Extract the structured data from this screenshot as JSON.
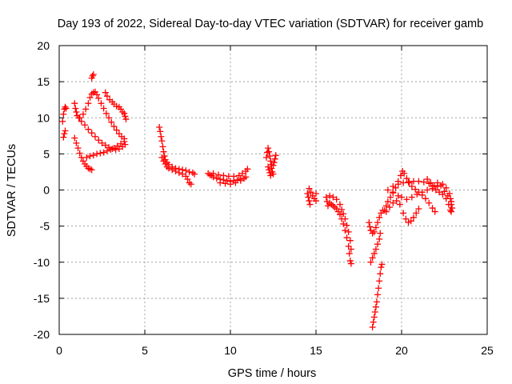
{
  "chart_data": {
    "type": "scatter",
    "title": "Day 193 of 2022, Sidereal Day-to-day VTEC variation (SDTVAR) for receiver gamb",
    "xlabel": "GPS time / hours",
    "ylabel": "SDTVAR / TECUs",
    "xlim": [
      0,
      25
    ],
    "ylim": [
      -20,
      20
    ],
    "xticks": [
      "0",
      "5",
      "10",
      "15",
      "20",
      "25"
    ],
    "yticks": [
      "20",
      "15",
      "10",
      "5",
      "0",
      "-5",
      "-10",
      "-15",
      "-20"
    ],
    "xtick_values": [
      0,
      5,
      10,
      15,
      20,
      25
    ],
    "ytick_values": [
      20,
      15,
      10,
      5,
      0,
      -5,
      -10,
      -15,
      -20
    ],
    "grid": true,
    "marker": "plus",
    "color": "#ff0000",
    "series": [
      {
        "points": [
          [
            0.25,
            7.3
          ],
          [
            0.3,
            7.8
          ],
          [
            0.35,
            8.2
          ],
          [
            0.2,
            9.5
          ],
          [
            0.25,
            10.5
          ],
          [
            0.3,
            11.2
          ],
          [
            0.35,
            11.5
          ],
          [
            0.4,
            11.3
          ],
          [
            0.9,
            12.0
          ],
          [
            0.95,
            11.3
          ],
          [
            1.0,
            10.8
          ],
          [
            1.05,
            10.3
          ],
          [
            1.15,
            10.0
          ],
          [
            1.3,
            9.5
          ],
          [
            1.5,
            9.0
          ],
          [
            1.7,
            8.4
          ],
          [
            1.9,
            7.9
          ],
          [
            2.1,
            7.4
          ],
          [
            2.3,
            6.9
          ],
          [
            2.5,
            6.5
          ],
          [
            2.7,
            6.2
          ],
          [
            2.9,
            5.9
          ],
          [
            3.1,
            5.7
          ],
          [
            3.3,
            5.6
          ],
          [
            3.5,
            5.7
          ],
          [
            3.7,
            6.0
          ],
          [
            3.85,
            6.3
          ],
          [
            0.9,
            7.2
          ],
          [
            1.0,
            6.5
          ],
          [
            1.1,
            5.8
          ],
          [
            1.2,
            5.1
          ],
          [
            1.3,
            4.5
          ],
          [
            1.4,
            4.0
          ],
          [
            1.5,
            3.6
          ],
          [
            1.6,
            3.3
          ],
          [
            1.7,
            3.0
          ],
          [
            1.8,
            2.9
          ],
          [
            1.9,
            2.8
          ],
          [
            1.6,
            4.5
          ],
          [
            1.8,
            4.7
          ],
          [
            2.0,
            4.8
          ],
          [
            2.2,
            5.0
          ],
          [
            2.4,
            5.1
          ],
          [
            2.6,
            5.2
          ],
          [
            2.8,
            5.4
          ],
          [
            3.0,
            5.6
          ],
          [
            3.2,
            5.8
          ],
          [
            3.4,
            6.1
          ],
          [
            3.6,
            6.4
          ],
          [
            3.8,
            6.7
          ],
          [
            1.2,
            10.0
          ],
          [
            1.4,
            10.5
          ],
          [
            1.55,
            11.2
          ],
          [
            1.7,
            12.0
          ],
          [
            1.8,
            12.8
          ],
          [
            1.9,
            13.3
          ],
          [
            2.0,
            13.5
          ],
          [
            2.1,
            13.6
          ],
          [
            2.2,
            13.2
          ],
          [
            2.3,
            12.7
          ],
          [
            2.45,
            12.0
          ],
          [
            2.6,
            11.3
          ],
          [
            2.75,
            10.6
          ],
          [
            2.9,
            10.0
          ],
          [
            3.05,
            9.4
          ],
          [
            3.2,
            8.8
          ],
          [
            3.35,
            8.3
          ],
          [
            3.5,
            7.8
          ],
          [
            3.65,
            7.4
          ],
          [
            3.8,
            7.1
          ],
          [
            1.9,
            15.5
          ],
          [
            1.95,
            15.8
          ],
          [
            2.0,
            16.0
          ],
          [
            2.7,
            13.5
          ],
          [
            2.8,
            13.0
          ],
          [
            2.95,
            12.5
          ],
          [
            3.1,
            12.2
          ],
          [
            3.2,
            11.9
          ],
          [
            3.35,
            11.6
          ],
          [
            3.5,
            11.5
          ],
          [
            3.6,
            11.2
          ],
          [
            3.7,
            10.8
          ],
          [
            3.8,
            10.6
          ],
          [
            3.85,
            10.2
          ],
          [
            3.9,
            9.8
          ]
        ]
      },
      {
        "points": [
          [
            5.85,
            8.7
          ],
          [
            5.9,
            8.1
          ],
          [
            5.95,
            7.4
          ],
          [
            6.0,
            6.8
          ],
          [
            6.05,
            6.0
          ],
          [
            6.1,
            5.3
          ],
          [
            6.15,
            4.7
          ],
          [
            6.2,
            4.2
          ],
          [
            6.3,
            3.8
          ],
          [
            6.4,
            3.5
          ],
          [
            6.6,
            3.2
          ],
          [
            6.8,
            3.0
          ],
          [
            7.0,
            2.9
          ],
          [
            7.2,
            2.8
          ],
          [
            7.4,
            2.7
          ],
          [
            7.6,
            2.5
          ],
          [
            7.8,
            2.4
          ],
          [
            7.9,
            2.2
          ],
          [
            6.0,
            4.5
          ],
          [
            6.1,
            4.0
          ],
          [
            6.2,
            3.6
          ],
          [
            6.3,
            3.2
          ],
          [
            6.4,
            3.0
          ],
          [
            6.6,
            2.8
          ],
          [
            6.8,
            2.6
          ],
          [
            7.0,
            2.4
          ],
          [
            7.2,
            2.2
          ],
          [
            7.4,
            1.9
          ],
          [
            7.5,
            1.5
          ],
          [
            7.6,
            1.0
          ],
          [
            7.7,
            0.8
          ]
        ]
      },
      {
        "points": [
          [
            8.7,
            2.3
          ],
          [
            8.8,
            2.1
          ],
          [
            8.9,
            2.0
          ],
          [
            9.0,
            1.8
          ],
          [
            9.2,
            1.6
          ],
          [
            9.4,
            1.5
          ],
          [
            9.6,
            1.4
          ],
          [
            9.8,
            1.3
          ],
          [
            10.0,
            1.2
          ],
          [
            10.2,
            1.3
          ],
          [
            10.4,
            1.4
          ],
          [
            10.6,
            1.5
          ],
          [
            10.8,
            1.6
          ],
          [
            10.9,
            1.8
          ],
          [
            9.0,
            2.3
          ],
          [
            9.3,
            2.1
          ],
          [
            9.6,
            2.0
          ],
          [
            9.9,
            1.9
          ],
          [
            10.2,
            1.9
          ],
          [
            10.5,
            2.0
          ],
          [
            10.7,
            2.3
          ],
          [
            10.9,
            2.6
          ],
          [
            11.0,
            2.9
          ],
          [
            9.4,
            1.0
          ],
          [
            9.7,
            0.9
          ],
          [
            10.0,
            0.8
          ],
          [
            10.3,
            1.0
          ],
          [
            10.6,
            1.3
          ]
        ]
      },
      {
        "points": [
          [
            12.1,
            4.5
          ],
          [
            12.15,
            5.2
          ],
          [
            12.2,
            5.8
          ],
          [
            12.25,
            5.3
          ],
          [
            12.3,
            4.7
          ],
          [
            12.35,
            4.0
          ],
          [
            12.4,
            3.5
          ],
          [
            12.2,
            3.2
          ],
          [
            12.25,
            2.8
          ],
          [
            12.3,
            2.4
          ],
          [
            12.35,
            2.0
          ],
          [
            12.4,
            3.0
          ],
          [
            12.5,
            3.4
          ],
          [
            12.55,
            3.8
          ],
          [
            12.6,
            4.3
          ],
          [
            12.65,
            4.8
          ],
          [
            12.45,
            2.5
          ],
          [
            12.5,
            2.2
          ]
        ]
      },
      {
        "points": [
          [
            14.5,
            -0.5
          ],
          [
            14.55,
            -1.0
          ],
          [
            14.6,
            -1.5
          ],
          [
            14.65,
            -2.0
          ],
          [
            14.6,
            0.2
          ],
          [
            14.7,
            -0.3
          ],
          [
            14.8,
            -0.8
          ],
          [
            14.9,
            -1.2
          ],
          [
            15.0,
            -0.5
          ],
          [
            15.0,
            -1.5
          ]
        ]
      },
      {
        "points": [
          [
            15.6,
            -1.0
          ],
          [
            15.65,
            -1.6
          ],
          [
            15.7,
            -2.2
          ],
          [
            15.8,
            -1.8
          ],
          [
            15.9,
            -2.0
          ],
          [
            16.0,
            -2.2
          ],
          [
            16.1,
            -2.4
          ],
          [
            16.2,
            -2.6
          ],
          [
            16.3,
            -3.0
          ],
          [
            16.4,
            -3.4
          ],
          [
            16.5,
            -4.0
          ],
          [
            16.6,
            -4.7
          ],
          [
            16.7,
            -5.6
          ],
          [
            16.8,
            -6.6
          ],
          [
            16.9,
            -7.8
          ],
          [
            16.95,
            -8.8
          ],
          [
            17.0,
            -9.8
          ],
          [
            17.05,
            -10.2
          ],
          [
            15.8,
            -0.8
          ],
          [
            16.0,
            -1.0
          ],
          [
            16.2,
            -1.3
          ],
          [
            16.4,
            -2.0
          ],
          [
            16.5,
            -2.7
          ],
          [
            16.6,
            -3.3
          ],
          [
            16.7,
            -4.0
          ],
          [
            16.8,
            -4.9
          ],
          [
            16.9,
            -5.8
          ],
          [
            17.0,
            -7.0
          ],
          [
            17.05,
            -8.2
          ]
        ]
      },
      {
        "points": [
          [
            18.1,
            -4.5
          ],
          [
            18.15,
            -5.1
          ],
          [
            18.2,
            -5.6
          ],
          [
            18.3,
            -6.0
          ],
          [
            18.4,
            -5.8
          ],
          [
            18.5,
            -5.2
          ],
          [
            18.6,
            -4.5
          ],
          [
            18.7,
            -3.8
          ],
          [
            18.8,
            -3.2
          ],
          [
            18.9,
            -2.8
          ],
          [
            18.2,
            -10.0
          ],
          [
            18.3,
            -9.4
          ],
          [
            18.4,
            -8.8
          ],
          [
            18.5,
            -8.2
          ],
          [
            18.6,
            -7.5
          ],
          [
            18.7,
            -6.8
          ],
          [
            18.75,
            -6.0
          ],
          [
            18.3,
            -19.0
          ],
          [
            18.35,
            -18.3
          ],
          [
            18.4,
            -17.6
          ],
          [
            18.45,
            -16.9
          ],
          [
            18.5,
            -16.2
          ],
          [
            18.55,
            -15.5
          ],
          [
            18.6,
            -14.5
          ],
          [
            18.65,
            -13.6
          ],
          [
            18.7,
            -12.6
          ],
          [
            18.75,
            -11.6
          ],
          [
            18.8,
            -10.7
          ],
          [
            18.85,
            -10.3
          ]
        ]
      },
      {
        "points": [
          [
            19.0,
            -2.8
          ],
          [
            19.1,
            -2.2
          ],
          [
            19.2,
            -1.6
          ],
          [
            19.35,
            -1.0
          ],
          [
            19.5,
            -0.4
          ],
          [
            19.65,
            0.3
          ],
          [
            19.8,
            1.2
          ],
          [
            19.95,
            2.0
          ],
          [
            20.05,
            2.6
          ],
          [
            20.15,
            2.3
          ],
          [
            20.3,
            1.6
          ],
          [
            20.45,
            1.0
          ],
          [
            20.6,
            0.5
          ],
          [
            20.8,
            0.1
          ],
          [
            21.0,
            -0.3
          ],
          [
            21.2,
            -0.7
          ],
          [
            21.4,
            -1.2
          ],
          [
            21.6,
            -1.8
          ],
          [
            21.8,
            -2.5
          ],
          [
            21.95,
            -3.0
          ],
          [
            19.1,
            -3.0
          ],
          [
            19.3,
            -2.4
          ],
          [
            19.5,
            -1.8
          ],
          [
            19.7,
            -1.5
          ],
          [
            19.9,
            -2.0
          ],
          [
            20.1,
            -3.2
          ],
          [
            20.25,
            -4.0
          ],
          [
            20.4,
            -4.5
          ],
          [
            20.55,
            -4.3
          ],
          [
            20.7,
            -3.8
          ],
          [
            20.85,
            -3.2
          ],
          [
            21.0,
            -2.6
          ],
          [
            19.2,
            0.0
          ],
          [
            19.5,
            -0.3
          ],
          [
            19.8,
            -0.8
          ],
          [
            20.0,
            -1.0
          ],
          [
            20.3,
            -1.3
          ],
          [
            20.6,
            -1.0
          ],
          [
            20.9,
            -0.6
          ],
          [
            21.2,
            -0.3
          ],
          [
            21.5,
            0.0
          ],
          [
            21.8,
            0.2
          ],
          [
            22.1,
            0.5
          ],
          [
            22.4,
            0.8
          ],
          [
            22.6,
            0.3
          ],
          [
            22.8,
            -0.5
          ],
          [
            22.85,
            -1.2
          ],
          [
            22.9,
            -2.0
          ],
          [
            19.5,
            0.5
          ],
          [
            19.8,
            0.8
          ],
          [
            20.1,
            1.0
          ],
          [
            20.4,
            1.1
          ],
          [
            20.7,
            1.2
          ],
          [
            21.0,
            1.2
          ],
          [
            21.3,
            1.1
          ],
          [
            21.6,
            0.9
          ],
          [
            21.8,
            0.5
          ],
          [
            22.0,
            0.0
          ],
          [
            22.2,
            -0.3
          ],
          [
            22.4,
            -0.6
          ],
          [
            22.6,
            -1.2
          ],
          [
            22.75,
            -2.0
          ],
          [
            22.85,
            -2.8
          ],
          [
            21.5,
            1.5
          ],
          [
            21.7,
            1.0
          ],
          [
            21.9,
            0.6
          ],
          [
            22.1,
            1.0
          ],
          [
            22.3,
            0.6
          ],
          [
            22.5,
            -0.2
          ],
          [
            22.7,
            -0.8
          ],
          [
            22.9,
            -1.6
          ],
          [
            22.95,
            -2.5
          ],
          [
            22.9,
            -3.0
          ]
        ]
      }
    ]
  }
}
